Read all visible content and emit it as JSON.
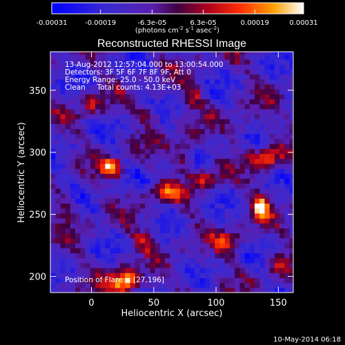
{
  "chart_data": {
    "type": "heatmap",
    "title": "Reconstructed RHESSI Image",
    "info_lines": [
      "13-Aug-2012 12:57:04.000 to 13:00:54.000",
      "Detectors: 3F 5F 6F 7F 8F 9F, Att 0",
      "Energy Range: 25.0 - 50.0 keV",
      "Clean     Total counts: 4.13E+03"
    ],
    "position_text": "Position of Flare = [27,196]",
    "xlabel": "Heliocentric X (arcsec)",
    "ylabel": "Heliocentric Y (arcsec)",
    "x_ticks": [
      "0",
      "50",
      "100",
      "150"
    ],
    "x_tick_values": [
      0,
      50,
      100,
      150
    ],
    "y_ticks": [
      "200",
      "250",
      "300",
      "350"
    ],
    "y_tick_values": [
      200,
      250,
      300,
      350
    ],
    "xlim": [
      -33,
      162
    ],
    "ylim": [
      187,
      381
    ],
    "colorbar": {
      "tick_labels": [
        "-0.00031",
        "-0.00019",
        "-6.3e-05",
        "6.3e-05",
        "0.00019",
        "0.00031"
      ],
      "tick_values": [
        -0.00031,
        -0.00019,
        -6.3e-05,
        6.3e-05,
        0.00019,
        0.00031
      ],
      "range": [
        -0.00031,
        0.00031
      ],
      "unit_label": "(photons cm",
      "unit_sup1": "-2",
      "unit_mid": " s",
      "unit_sup2": "-1",
      "unit_mid2": " asec",
      "unit_sup3": "-2",
      "unit_end": ")"
    },
    "sources": [
      {
        "x": 27,
        "y": 196,
        "sx": 8,
        "sy": 7,
        "amp": 1.0
      },
      {
        "x": 16,
        "y": 288,
        "sx": 6,
        "sy": 5,
        "amp": 0.85
      },
      {
        "x": 136,
        "y": 257,
        "sx": 5,
        "sy": 7,
        "amp": 0.85
      },
      {
        "x": 140,
        "y": 295,
        "sx": 9,
        "sy": 6,
        "amp": 0.7
      },
      {
        "x": 93,
        "y": 280,
        "sx": 7,
        "sy": 5,
        "amp": 0.55
      },
      {
        "x": 60,
        "y": 268,
        "sx": 12,
        "sy": 5,
        "amp": 0.5
      },
      {
        "x": 75,
        "y": 302,
        "sx": 6,
        "sy": 10,
        "amp": 0.45
      },
      {
        "x": 110,
        "y": 228,
        "sx": 8,
        "sy": 6,
        "amp": 0.45
      },
      {
        "x": 47,
        "y": 330,
        "sx": 6,
        "sy": 5,
        "amp": 0.4
      },
      {
        "x": 0,
        "y": 340,
        "sx": 7,
        "sy": 7,
        "amp": 0.4
      },
      {
        "x": 82,
        "y": 345,
        "sx": 6,
        "sy": 6,
        "amp": 0.35
      },
      {
        "x": 43,
        "y": 230,
        "sx": 7,
        "sy": 6,
        "amp": 0.4
      },
      {
        "x": -20,
        "y": 255,
        "sx": 6,
        "sy": 8,
        "amp": 0.35
      },
      {
        "x": 120,
        "y": 320,
        "sx": 6,
        "sy": 6,
        "amp": 0.35
      },
      {
        "x": 150,
        "y": 210,
        "sx": 6,
        "sy": 6,
        "amp": 0.35
      }
    ]
  },
  "footer_date": "10-May-2014 06:18"
}
